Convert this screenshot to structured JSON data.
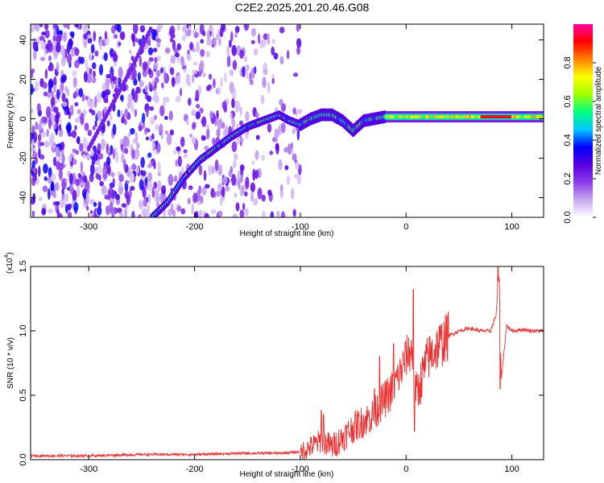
{
  "title": "C2E2.2025.201.20.46.G08",
  "chart_data": [
    {
      "type": "heatmap",
      "xlabel": "Height of straight line (km)",
      "ylabel": "Frequency (Hz)",
      "xlim": [
        -355,
        130
      ],
      "ylim": [
        -50,
        48
      ],
      "xticks": [
        -300,
        -200,
        -100,
        0,
        100
      ],
      "yticks": [
        -40,
        -20,
        0,
        20,
        40
      ],
      "colorbar": {
        "label": "Normalized spectral amplitude",
        "range": [
          0,
          1
        ],
        "ticks": [
          0.0,
          0.2,
          0.4,
          0.6,
          0.8
        ],
        "colormap": [
          "#ffffff",
          "#c8a8f0",
          "#8a3be8",
          "#5a00e0",
          "#0000ff",
          "#00c8ff",
          "#00ff80",
          "#a0ff00",
          "#ffff00",
          "#ff8000",
          "#ff0000",
          "#ff00a0"
        ]
      },
      "ridge_points": [
        {
          "x": -240,
          "y": -50
        },
        {
          "x": -225,
          "y": -42
        },
        {
          "x": -210,
          "y": -30
        },
        {
          "x": -195,
          "y": -21
        },
        {
          "x": -180,
          "y": -15
        },
        {
          "x": -165,
          "y": -9
        },
        {
          "x": -150,
          "y": -4
        },
        {
          "x": -135,
          "y": -1
        },
        {
          "x": -120,
          "y": 2
        },
        {
          "x": -110,
          "y": -1
        },
        {
          "x": -100,
          "y": -3
        },
        {
          "x": -90,
          "y": 0
        },
        {
          "x": -80,
          "y": 2
        },
        {
          "x": -70,
          "y": 2
        },
        {
          "x": -60,
          "y": -1
        },
        {
          "x": -50,
          "y": -6
        },
        {
          "x": -40,
          "y": -1
        },
        {
          "x": -30,
          "y": 0
        },
        {
          "x": -20,
          "y": 1
        },
        {
          "x": 0,
          "y": 1
        },
        {
          "x": 40,
          "y": 1
        },
        {
          "x": 80,
          "y": 1
        },
        {
          "x": 90,
          "y": 1
        },
        {
          "x": 130,
          "y": 1
        }
      ],
      "upper_streak": [
        {
          "x": -300,
          "y": -15
        },
        {
          "x": -280,
          "y": 5
        },
        {
          "x": -260,
          "y": 25
        },
        {
          "x": -240,
          "y": 47
        }
      ]
    },
    {
      "type": "line",
      "xlabel": "Height of straight line (km)",
      "ylabel": "SNR (10 * v/v)",
      "multiplier_label": "(x10",
      "multiplier_exp": "4",
      "xlim": [
        -355,
        130
      ],
      "ylim": [
        0,
        1.5
      ],
      "xticks": [
        -300,
        -200,
        -100,
        0,
        100
      ],
      "yticks": [
        0.0,
        0.5,
        1.0,
        1.5
      ],
      "color": "#ee3030",
      "series": [
        {
          "x": [
            -355,
            -300,
            -250,
            -200,
            -150,
            -120,
            -100,
            -90,
            -80,
            -70,
            -60,
            -50,
            -40,
            -30,
            -25,
            -20,
            -15,
            -10,
            -5,
            0,
            5,
            10,
            20,
            30,
            40,
            50,
            60,
            70,
            80,
            85,
            88,
            90,
            95,
            100,
            110,
            120,
            130
          ],
          "y": [
            0.03,
            0.03,
            0.04,
            0.04,
            0.05,
            0.05,
            0.06,
            0.1,
            0.15,
            0.1,
            0.17,
            0.25,
            0.3,
            0.35,
            0.42,
            0.47,
            0.52,
            0.6,
            0.68,
            0.8,
            0.85,
            0.5,
            0.78,
            0.88,
            0.96,
            1.0,
            1.02,
            1.0,
            1.0,
            1.12,
            1.45,
            0.62,
            1.04,
            1.0,
            1.01,
            1.0,
            1.0
          ],
          "spikes": [
            {
              "x": -80,
              "y": 0.38
            },
            {
              "x": -78,
              "y": 0.35
            },
            {
              "x": -30,
              "y": 0.55
            },
            {
              "x": -25,
              "y": 0.8
            },
            {
              "x": -12,
              "y": 0.9
            },
            {
              "x": 7,
              "y": 1.32
            },
            {
              "x": 8,
              "y": 0.22
            },
            {
              "x": 87,
              "y": 1.5
            },
            {
              "x": 89,
              "y": 0.55
            }
          ]
        }
      ]
    }
  ]
}
